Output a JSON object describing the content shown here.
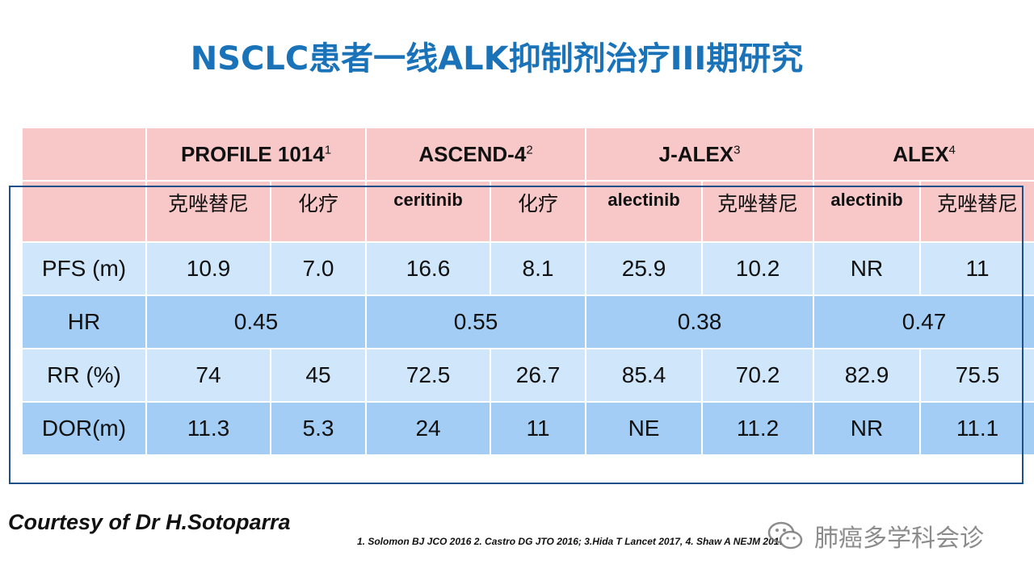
{
  "title": "NSCLC患者一线ALK抑制剂治疗III期研究",
  "table": {
    "studies": [
      {
        "name": "PROFILE 1014",
        "sup": "1",
        "arms": [
          "克唑替尼",
          "化疗"
        ]
      },
      {
        "name": "ASCEND-4",
        "sup": "2",
        "arms": [
          "ceritinib",
          "化疗"
        ]
      },
      {
        "name": "J-ALEX",
        "sup": "3",
        "arms": [
          "alectinib",
          "克唑替尼"
        ]
      },
      {
        "name": "ALEX",
        "sup": "4",
        "arms": [
          "alectinib",
          "克唑替尼"
        ]
      }
    ],
    "pfs": {
      "label": "PFS (m)",
      "values": [
        "10.9",
        "7.0",
        "16.6",
        "8.1",
        "25.9",
        "10.2",
        "NR",
        "11"
      ]
    },
    "hr": {
      "label": "HR",
      "values": [
        "0.45",
        "0.55",
        "0.38",
        "0.47"
      ]
    },
    "rr": {
      "label": "RR (%)",
      "values": [
        "74",
        "45",
        "72.5",
        "26.7",
        "85.4",
        "70.2",
        "82.9",
        "75.5"
      ]
    },
    "dor": {
      "label": "DOR(m)",
      "values": [
        "11.3",
        "5.3",
        "24",
        "11",
        "NE",
        "11.2",
        "NR",
        "11.1"
      ]
    }
  },
  "courtesy": "Courtesy of Dr H.Sotoparra",
  "references": "1. Solomon  BJ JCO 2016 2. Castro DG  JTO 2016; 3.Hida T Lancet 2017, 4. Shaw  A  NEJM 2017",
  "watermark": "肺癌多学科会诊",
  "colors": {
    "title": "#1a73b8",
    "header_bg": "#f8c8c9",
    "row_light": "#cfe6fb",
    "row_dark": "#a3cdf5",
    "frame": "#1d4f8a"
  }
}
